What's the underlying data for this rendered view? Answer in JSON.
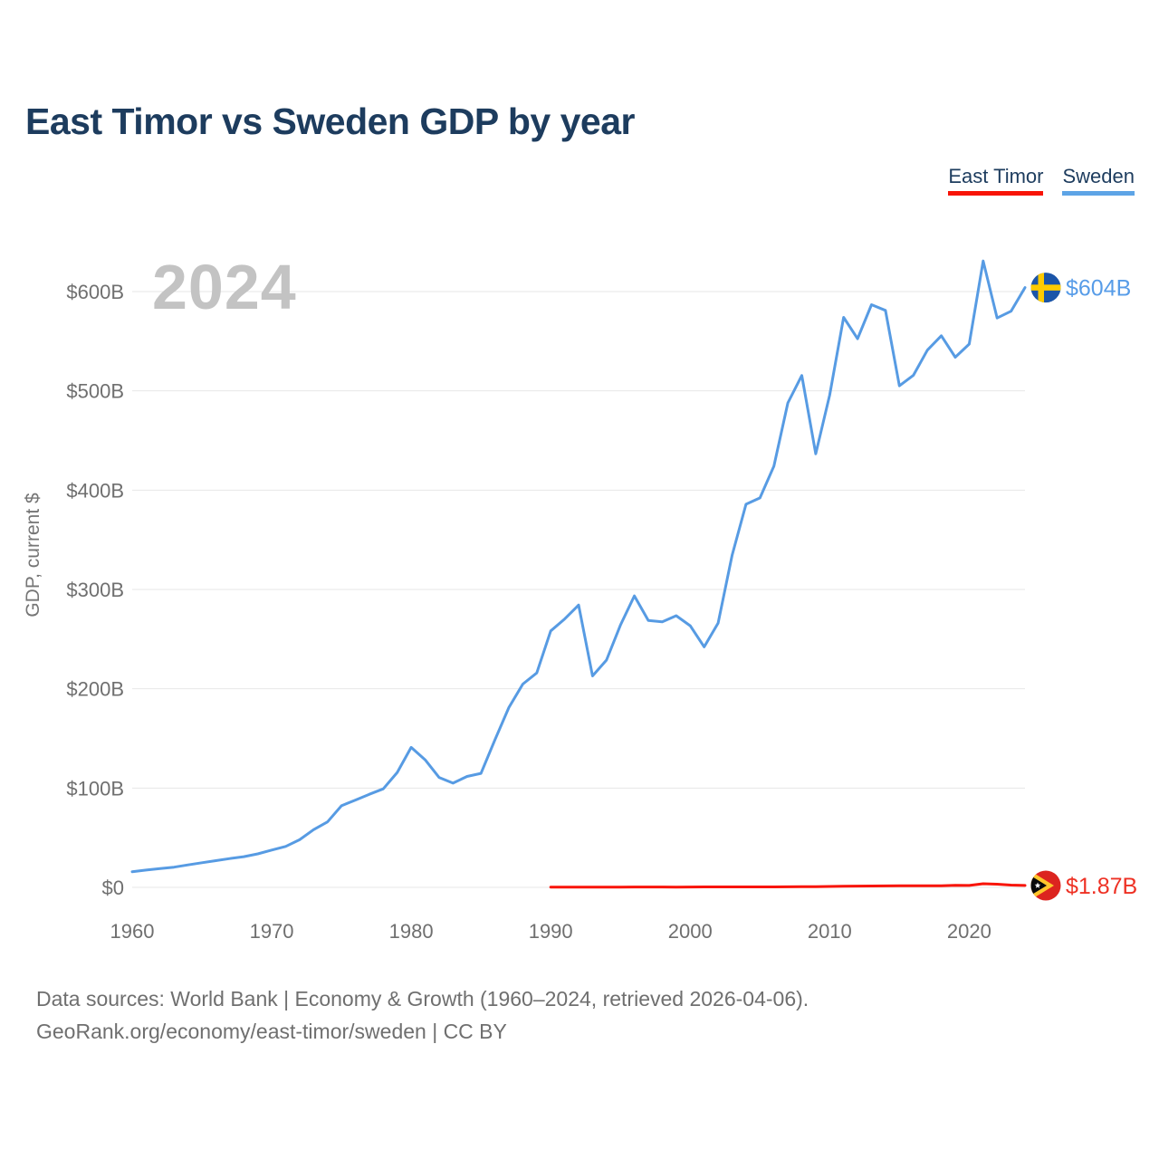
{
  "header": {
    "title": "East Timor vs Sweden GDP by year"
  },
  "legend": {
    "items": [
      {
        "label": "East Timor",
        "color": "#f81407"
      },
      {
        "label": "Sweden",
        "color": "#5da4e6"
      }
    ]
  },
  "footer": {
    "line1": "Data sources: World Bank | Economy & Growth (1960–2024, retrieved 2026-04-06).",
    "line2": "GeoRank.org/economy/east-timor/sweden | CC BY"
  },
  "chart_data": {
    "type": "line",
    "title": "East Timor vs Sweden GDP by year",
    "xlabel": "",
    "ylabel": "GDP, current $",
    "units": "billions of current US$",
    "watermark": "2024",
    "grid": true,
    "legend_position": "top-right",
    "xlim": [
      1960,
      2024
    ],
    "ylim": [
      0,
      600
    ],
    "y_ticks": [
      {
        "value": 0,
        "label": "$0"
      },
      {
        "value": 100,
        "label": "$100B"
      },
      {
        "value": 200,
        "label": "$200B"
      },
      {
        "value": 300,
        "label": "$300B"
      },
      {
        "value": 400,
        "label": "$400B"
      },
      {
        "value": 500,
        "label": "$500B"
      },
      {
        "value": 600,
        "label": "$600B"
      }
    ],
    "x_ticks": [
      {
        "value": 1960,
        "label": "1960"
      },
      {
        "value": 1970,
        "label": "1970"
      },
      {
        "value": 1980,
        "label": "1980"
      },
      {
        "value": 1990,
        "label": "1990"
      },
      {
        "value": 2000,
        "label": "2000"
      },
      {
        "value": 2010,
        "label": "2010"
      },
      {
        "value": 2020,
        "label": "2020"
      }
    ],
    "series": [
      {
        "id": "east-timor",
        "name": "East Timor",
        "color": "#f81407",
        "label_color": "#ee3124",
        "end_label": "$1.87B",
        "x": [
          1990,
          1991,
          1992,
          1993,
          1994,
          1995,
          1996,
          1997,
          1998,
          1999,
          2000,
          2001,
          2002,
          2003,
          2004,
          2005,
          2006,
          2007,
          2008,
          2009,
          2010,
          2011,
          2012,
          2013,
          2014,
          2015,
          2016,
          2017,
          2018,
          2019,
          2020,
          2021,
          2022,
          2023,
          2024
        ],
        "values": [
          0.24,
          0.25,
          0.26,
          0.27,
          0.28,
          0.31,
          0.33,
          0.35,
          0.34,
          0.3,
          0.37,
          0.48,
          0.47,
          0.5,
          0.44,
          0.46,
          0.45,
          0.54,
          0.65,
          0.74,
          0.88,
          1.12,
          1.29,
          1.38,
          1.45,
          1.59,
          1.65,
          1.62,
          1.56,
          2.05,
          1.9,
          3.62,
          3.2,
          2.24,
          1.87
        ]
      },
      {
        "id": "sweden",
        "name": "Sweden",
        "color": "#579be3",
        "label_color": "#579ce8",
        "end_label": "$604B",
        "x": [
          1960,
          1961,
          1962,
          1963,
          1964,
          1965,
          1966,
          1967,
          1968,
          1969,
          1970,
          1971,
          1972,
          1973,
          1974,
          1975,
          1976,
          1977,
          1978,
          1979,
          1980,
          1981,
          1982,
          1983,
          1984,
          1985,
          1986,
          1987,
          1988,
          1989,
          1990,
          1991,
          1992,
          1993,
          1994,
          1995,
          1996,
          1997,
          1998,
          1999,
          2000,
          2001,
          2002,
          2003,
          2004,
          2005,
          2006,
          2007,
          2008,
          2009,
          2010,
          2011,
          2012,
          2013,
          2014,
          2015,
          2016,
          2017,
          2018,
          2019,
          2020,
          2021,
          2022,
          2023,
          2024
        ],
        "values": [
          15.8,
          17.4,
          18.9,
          20.3,
          22.6,
          24.8,
          26.9,
          29.0,
          30.9,
          33.7,
          37.6,
          41.2,
          48.0,
          58.1,
          65.9,
          82.2,
          87.9,
          93.7,
          99.2,
          115.7,
          141.0,
          128.5,
          110.7,
          105.0,
          111.7,
          114.8,
          148.5,
          181.1,
          204.7,
          215.9,
          258.2,
          270.3,
          284.3,
          212.9,
          228.9,
          264.1,
          293.5,
          268.7,
          267.4,
          273.6,
          263.4,
          242.2,
          266.2,
          334.3,
          385.8,
          392.2,
          424.2,
          487.8,
          515.5,
          436.6,
          495.8,
          574.0,
          552.5,
          586.8,
          581.0,
          505.1,
          515.7,
          541.0,
          555.5,
          533.9,
          547.1,
          630.8,
          573.4,
          580.2,
          604.0
        ]
      }
    ]
  }
}
